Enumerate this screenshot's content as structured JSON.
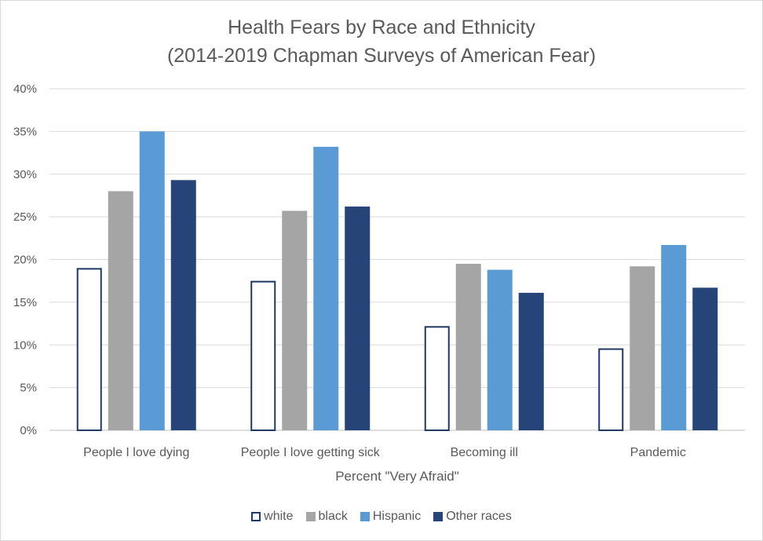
{
  "chart_data": {
    "type": "bar",
    "title": "Health Fears by Race and Ethnicity",
    "subtitle": "(2014-2019 Chapman Surveys of American Fear)",
    "xlabel": "Percent \"Very Afraid\"",
    "ylabel": "",
    "ylim": [
      0,
      40
    ],
    "yticks": [
      0,
      5,
      10,
      15,
      20,
      25,
      30,
      35,
      40
    ],
    "ytick_suffix": "%",
    "grid": true,
    "legend_position": "bottom",
    "categories": [
      "People I love dying",
      "People I love getting sick",
      "Becoming ill",
      "Pandemic"
    ],
    "series": [
      {
        "name": "white",
        "values": [
          19.0,
          17.5,
          12.2,
          9.6
        ],
        "color": "#ffffff",
        "stroke": "#1f3864"
      },
      {
        "name": "black",
        "values": [
          28.0,
          25.7,
          19.5,
          19.2
        ],
        "color": "#a5a5a5",
        "stroke": "none"
      },
      {
        "name": "Hispanic",
        "values": [
          35.0,
          33.2,
          18.8,
          21.7
        ],
        "color": "#5b9bd5",
        "stroke": "none"
      },
      {
        "name": "Other races",
        "values": [
          29.3,
          26.2,
          16.1,
          16.7
        ],
        "color": "#264478",
        "stroke": "none"
      }
    ]
  }
}
